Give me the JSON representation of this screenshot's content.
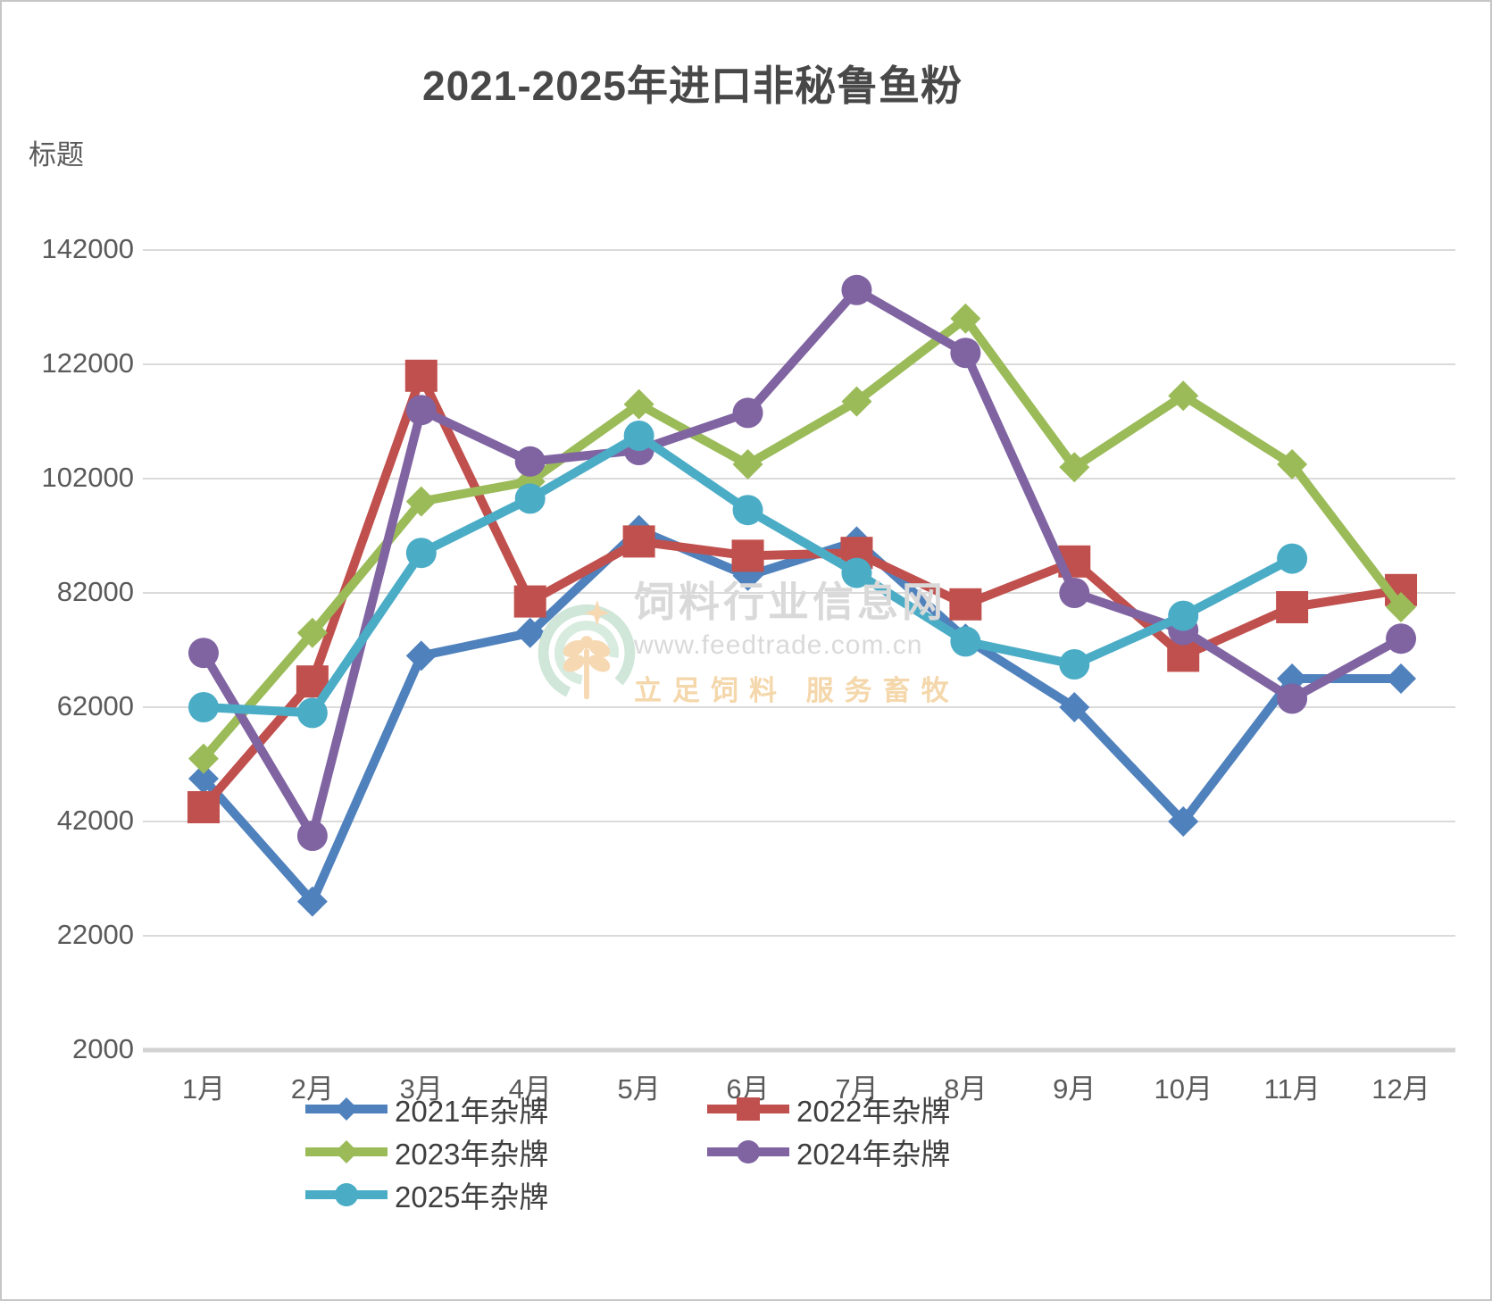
{
  "title": "2021-2025年进口非秘鲁鱼粉",
  "axis_title": "标题",
  "watermark": {
    "name": "饲料行业信息网",
    "url": "www.feedtrade.com.cn",
    "slogan": "立足饲料  服务畜牧"
  },
  "chart_data": {
    "type": "line",
    "categories": [
      "1月",
      "2月",
      "3月",
      "4月",
      "5月",
      "6月",
      "7月",
      "8月",
      "9月",
      "10月",
      "11月",
      "12月"
    ],
    "y_ticks": [
      2000,
      22000,
      42000,
      62000,
      82000,
      102000,
      122000,
      142000
    ],
    "ylim": [
      2000,
      142000
    ],
    "grid": true,
    "legend_position": "bottom",
    "title": "2021-2025年进口非秘鲁鱼粉",
    "xlabel": "",
    "ylabel": "标题",
    "series": [
      {
        "name": "2021年杂牌",
        "color": "#4F81BD",
        "marker": "diamond",
        "values": [
          49500,
          28000,
          71000,
          75000,
          93000,
          85000,
          91000,
          74000,
          62000,
          42000,
          67000,
          67000
        ]
      },
      {
        "name": "2022年杂牌",
        "color": "#C0504D",
        "marker": "square",
        "values": [
          44500,
          66500,
          120000,
          80500,
          91000,
          88500,
          89000,
          80000,
          87500,
          71000,
          79500,
          82500
        ]
      },
      {
        "name": "2023年杂牌",
        "color": "#9BBB59",
        "marker": "diamond",
        "values": [
          53000,
          75000,
          98000,
          101500,
          115000,
          104500,
          115500,
          130000,
          104000,
          116500,
          104500,
          79500
        ]
      },
      {
        "name": "2024年杂牌",
        "color": "#8064A2",
        "marker": "circle",
        "values": [
          71500,
          39500,
          114000,
          105000,
          107000,
          113500,
          135000,
          124000,
          82000,
          75500,
          63500,
          74000
        ]
      },
      {
        "name": "2025年杂牌",
        "color": "#4BACC6",
        "marker": "circle",
        "values": [
          62000,
          61000,
          89000,
          98500,
          109500,
          96500,
          85500,
          73500,
          69500,
          78000,
          88000,
          null
        ]
      }
    ]
  }
}
